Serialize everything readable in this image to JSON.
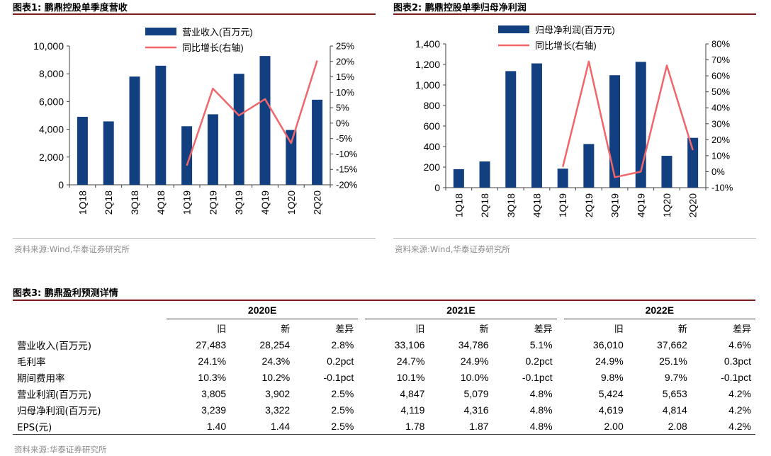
{
  "fig1": {
    "title": "图表1:  鹏鼎控股单季度营收",
    "source": "资料来源:Wind,华泰证券研究所",
    "bar_color": "#123f7f",
    "line_color": "#f0666b"
  },
  "fig2": {
    "title": "图表2:  鹏鼎控股单季归母净利润",
    "source": "资料来源:Wind,华泰证券研究所",
    "bar_color": "#123f7f",
    "line_color": "#f0666b"
  },
  "fig3": {
    "title": "图表3:  鹏鼎盈利预测详情",
    "source": "资料来源:华泰证券研究所"
  },
  "chart_data": [
    {
      "type": "bar",
      "title": "鹏鼎控股单季度营收",
      "categories": [
        "1Q18",
        "2Q18",
        "3Q18",
        "4Q18",
        "1Q19",
        "2Q19",
        "3Q19",
        "4Q19",
        "1Q20",
        "2Q20"
      ],
      "series": [
        {
          "name": "营业收入(百万元)",
          "type": "bar",
          "axis": "left",
          "values": [
            4900,
            4570,
            7800,
            8580,
            4220,
            5080,
            8000,
            9280,
            3950,
            6130
          ]
        },
        {
          "name": "同比增长(右轴)",
          "type": "line",
          "axis": "right",
          "values": [
            null,
            null,
            null,
            null,
            -13.8,
            11.2,
            2.5,
            7.8,
            -6.5,
            20.3
          ]
        }
      ],
      "ylim_left": [
        0,
        10000
      ],
      "yticks_left": [
        "0",
        "2,000",
        "4,000",
        "6,000",
        "8,000",
        "10,000"
      ],
      "ylim_right": [
        -20,
        25
      ],
      "yticks_right": [
        "-20%",
        "-15%",
        "-10%",
        "-5%",
        "0%",
        "5%",
        "10%",
        "15%",
        "20%",
        "25%"
      ],
      "legend": [
        "营业收入(百万元)",
        "同比增长(右轴)"
      ]
    },
    {
      "type": "bar",
      "title": "鹏鼎控股单季归母净利润",
      "categories": [
        "1Q18",
        "2Q18",
        "3Q18",
        "4Q18",
        "1Q19",
        "2Q19",
        "3Q19",
        "4Q19",
        "1Q20",
        "2Q20"
      ],
      "series": [
        {
          "name": "归母净利润(百万元)",
          "type": "bar",
          "axis": "left",
          "values": [
            180,
            255,
            1135,
            1210,
            185,
            425,
            1095,
            1225,
            310,
            485
          ]
        },
        {
          "name": "同比增长(右轴)",
          "type": "line",
          "axis": "right",
          "values": [
            null,
            null,
            null,
            null,
            3,
            69,
            -3.5,
            0,
            66.5,
            13.5
          ]
        }
      ],
      "ylim_left": [
        0,
        1400
      ],
      "yticks_left": [
        "0",
        "200",
        "400",
        "600",
        "800",
        "1,000",
        "1,200",
        "1,400"
      ],
      "ylim_right": [
        -10,
        80
      ],
      "yticks_right": [
        "-10%",
        "0%",
        "10%",
        "20%",
        "30%",
        "40%",
        "50%",
        "60%",
        "70%",
        "80%"
      ],
      "legend": [
        "归母净利润(百万元)",
        "同比增长(右轴)"
      ]
    },
    {
      "type": "table",
      "title": "鹏鼎盈利预测详情",
      "years": [
        "2020E",
        "2021E",
        "2022E"
      ],
      "subheaders": [
        "旧",
        "新",
        "差异"
      ],
      "rows": [
        {
          "label": "营业收入(百万元)",
          "cells": [
            "27,483",
            "28,254",
            "2.8%",
            "33,106",
            "34,786",
            "5.1%",
            "36,010",
            "37,662",
            "4.6%"
          ]
        },
        {
          "label": "毛利率",
          "cells": [
            "24.1%",
            "24.3%",
            "0.2pct",
            "24.7%",
            "24.9%",
            "0.2pct",
            "24.9%",
            "25.1%",
            "0.3pct"
          ]
        },
        {
          "label": "期间费用率",
          "cells": [
            "10.3%",
            "10.2%",
            "-0.1pct",
            "10.1%",
            "10.0%",
            "-0.1pct",
            "9.8%",
            "9.7%",
            "-0.1pct"
          ]
        },
        {
          "label": "营业利润(百万元)",
          "cells": [
            "3,805",
            "3,902",
            "2.5%",
            "4,847",
            "5,079",
            "4.8%",
            "5,424",
            "5,653",
            "4.2%"
          ]
        },
        {
          "label": "归母净利润(百万元)",
          "cells": [
            "3,239",
            "3,322",
            "2.5%",
            "4,119",
            "4,316",
            "4.8%",
            "4,619",
            "4,814",
            "4.2%"
          ]
        },
        {
          "label": "EPS(元)",
          "cells": [
            "1.40",
            "1.44",
            "2.5%",
            "1.78",
            "1.87",
            "4.8%",
            "2.00",
            "2.08",
            "4.2%"
          ]
        }
      ]
    }
  ]
}
